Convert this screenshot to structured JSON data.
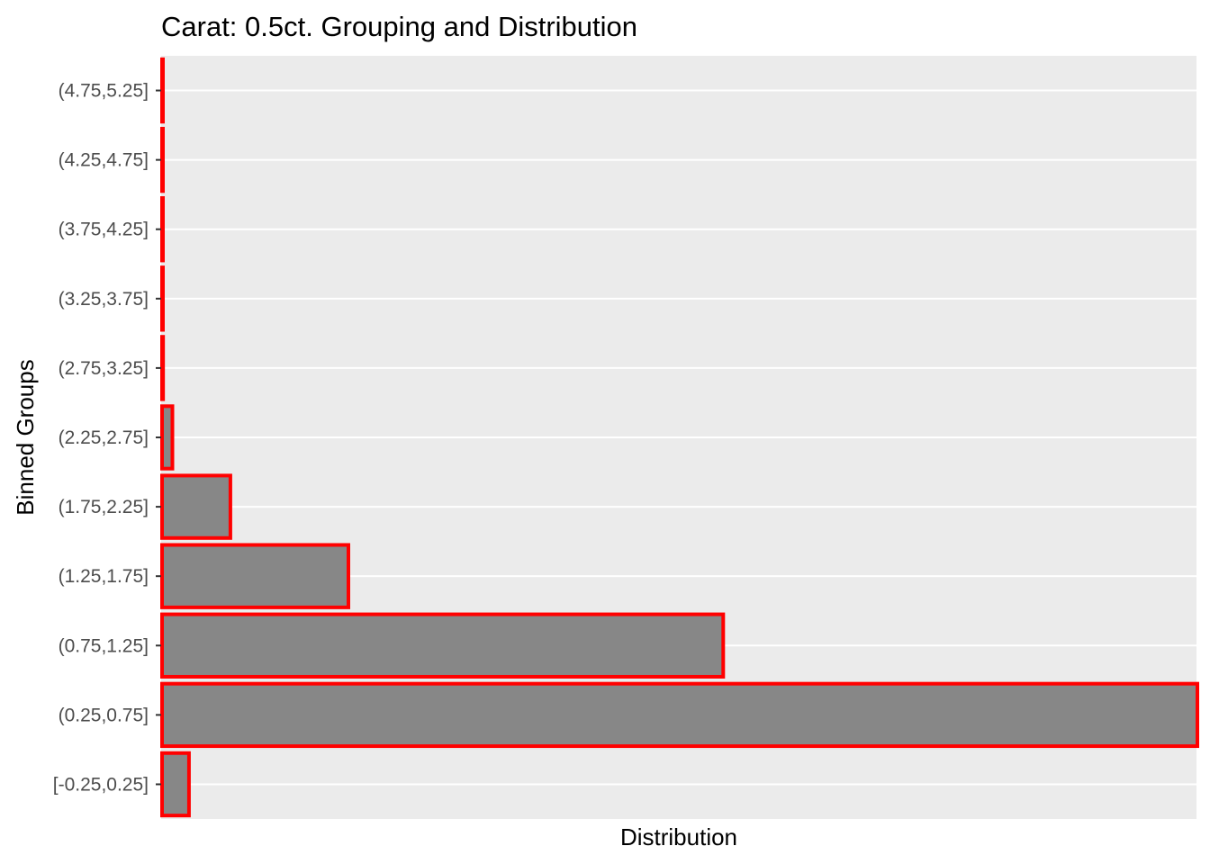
{
  "chart_data": {
    "type": "bar",
    "orientation": "horizontal",
    "title": "Carat: 0.5ct. Grouping and Distribution",
    "xlabel": "Distribution",
    "ylabel": "Binned Groups",
    "categories": [
      "[-0.25,0.25]",
      "(0.25,0.75]",
      "(0.75,1.25]",
      "(1.25,1.75]",
      "(1.75,2.25]",
      "(2.25,2.75]",
      "(2.75,3.25]",
      "(3.25,3.75]",
      "(3.75,4.25]",
      "(4.25,4.75]",
      "(4.75,5.25]"
    ],
    "values": [
      0.026,
      1.0,
      0.542,
      0.18,
      0.066,
      0.01,
      0.001,
      0.0005,
      0.0004,
      0.0003,
      0.0002
    ],
    "xlim": [
      0,
      1
    ],
    "x_ticks_shown": false,
    "grid": true,
    "legend": "none",
    "colors": {
      "panel_background": "#ebebeb",
      "gridline": "#ffffff",
      "bar_fill": "#878787",
      "bar_outline": "#ff0000",
      "tick_mark": "#333333"
    }
  }
}
